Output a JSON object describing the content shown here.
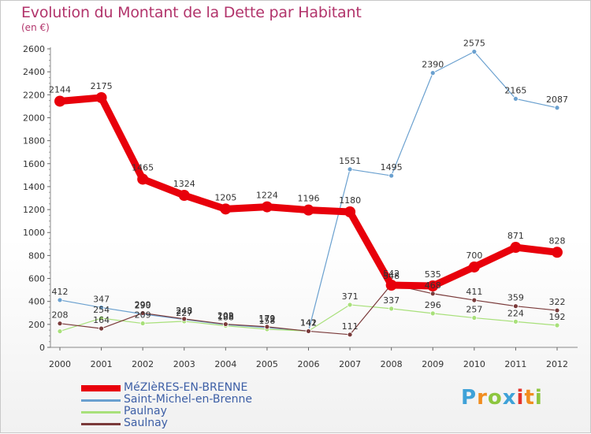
{
  "header": {
    "title": "Evolution du Montant de la Dette par Habitant",
    "subtitle": "(en €)"
  },
  "logo": {
    "letters": [
      "P",
      "r",
      "o",
      "x",
      "i",
      "t",
      "i"
    ],
    "colors": [
      "#3fa2d8",
      "#f18d1f",
      "#8dc63f",
      "#3fa2d8",
      "#e4322b",
      "#f18d1f",
      "#8dc63f"
    ]
  },
  "chart_data": {
    "type": "line",
    "x": [
      "2000",
      "2001",
      "2002",
      "2003",
      "2004",
      "2005",
      "2006",
      "2007",
      "2008",
      "2009",
      "2010",
      "2011",
      "2012"
    ],
    "ylim": [
      0,
      2600
    ],
    "yticks": [
      "0",
      "200",
      "400",
      "600",
      "800",
      "1000",
      "1200",
      "1400",
      "1600",
      "1800",
      "2000",
      "2200",
      "2400",
      "2600"
    ],
    "grid": false,
    "legend_position": "bottom-left",
    "series": [
      {
        "name": "MéZIèRES-EN-BRENNE",
        "color": "#e8000b",
        "width": 9,
        "values": [
          2144,
          2175,
          1465,
          1324,
          1205,
          1224,
          1196,
          1180,
          542,
          535,
          700,
          871,
          828
        ],
        "labels": [
          "2144",
          "2175",
          "1465",
          "1324",
          "1205",
          "1224",
          "1196",
          "1180",
          "542",
          "535",
          "700",
          "871",
          "828"
        ]
      },
      {
        "name": "Saint-Michel-en-Brenne",
        "color": "#6aa0cf",
        "width": 1.2,
        "values": [
          412,
          347,
          290,
          243,
          198,
          172,
          142,
          1551,
          1495,
          2390,
          2575,
          2165,
          2087
        ],
        "labels": [
          "412",
          "347",
          "290",
          "243",
          "198",
          "172",
          "142",
          "1551",
          "1495",
          "2390",
          "2575",
          "2165",
          "2087"
        ]
      },
      {
        "name": "Paulnay",
        "color": "#a8e07a",
        "width": 1.2,
        "values": [
          140,
          254,
          209,
          227,
          188,
          158,
          142,
          371,
          337,
          296,
          257,
          224,
          192
        ],
        "labels": [
          "",
          "254",
          "209",
          "227",
          "188",
          "158",
          "142",
          "371",
          "337",
          "296",
          "257",
          "224",
          "192"
        ]
      },
      {
        "name": "Saulnay",
        "color": "#7a3a3a",
        "width": 1.2,
        "values": [
          208,
          164,
          299,
          248,
          202,
          179,
          141,
          111,
          548,
          468,
          411,
          359,
          322
        ],
        "labels": [
          "208",
          "164",
          "299",
          "248",
          "202",
          "179",
          "141",
          "111",
          "548",
          "468",
          "411",
          "359",
          "322"
        ]
      }
    ]
  }
}
